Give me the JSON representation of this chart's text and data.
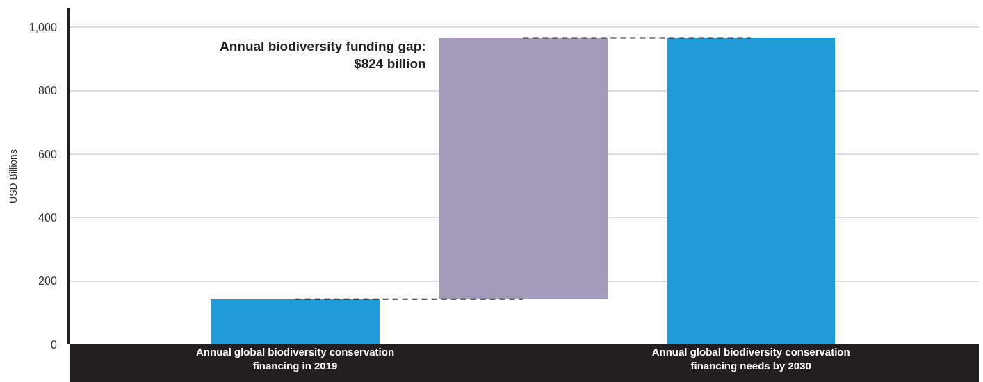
{
  "chart_data": {
    "type": "bar",
    "ylabel": "USD Billions",
    "categories": [
      "Annual global biodiversity conservation financing in 2019",
      null,
      "Annual global biodiversity conservation financing needs by 2030"
    ],
    "values": [
      143,
      824,
      967
    ],
    "base": [
      0,
      143,
      0
    ],
    "colors": [
      "#1f9ad6",
      "#a39bb9",
      "#1f9ad6"
    ],
    "series": [
      {
        "type": "line",
        "color": "#333333",
        "values": [
          143,
          143,
          null
        ]
      },
      {
        "type": "line",
        "color": "#333333",
        "values": [
          null,
          967,
          967
        ]
      }
    ],
    "line_style": "dashed",
    "ylim": [
      0,
      1060
    ],
    "yticks": [
      0,
      200,
      400,
      600,
      800,
      {
        "value": 1000,
        "label": "1,000"
      }
    ],
    "grid": "y",
    "annotations": [
      "Annual biodiversity funding gap:\n$824 billion"
    ]
  }
}
